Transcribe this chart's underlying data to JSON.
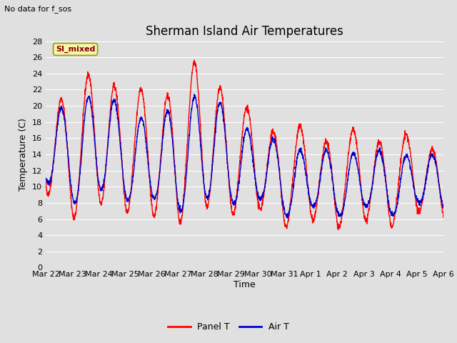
{
  "title": "Sherman Island Air Temperatures",
  "subtitle": "No data for f_sos",
  "ylabel": "Temperature (C)",
  "xlabel": "Time",
  "annotation": "SI_mixed",
  "ylim": [
    0,
    28
  ],
  "yticks": [
    0,
    2,
    4,
    6,
    8,
    10,
    12,
    14,
    16,
    18,
    20,
    22,
    24,
    26,
    28
  ],
  "x_tick_labels": [
    "Mar 22",
    "Mar 23",
    "Mar 24",
    "Mar 25",
    "Mar 26",
    "Mar 27",
    "Mar 28",
    "Mar 29",
    "Mar 30",
    "Mar 31",
    "Apr 1",
    "Apr 2",
    "Apr 3",
    "Apr 4",
    "Apr 5",
    "Apr 6"
  ],
  "background_color": "#e0e0e0",
  "plot_bg_color": "#e0e0e0",
  "panel_T_color": "#ff0000",
  "air_T_color": "#0000cc",
  "legend_labels": [
    "Panel T",
    "Air T"
  ],
  "title_fontsize": 12,
  "label_fontsize": 9,
  "tick_fontsize": 8,
  "n_days": 15,
  "pts_per_day": 144
}
